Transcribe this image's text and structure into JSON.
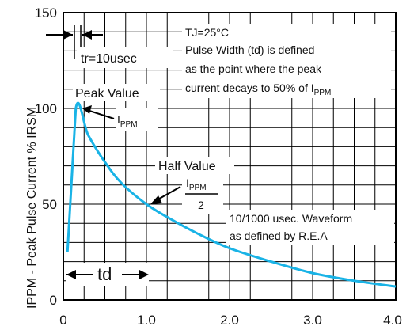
{
  "chart_data": {
    "type": "line",
    "title": "",
    "xlabel": "",
    "ylabel": "IPPM - Peak Pulse Current % IRSM",
    "xlim": [
      0,
      4.0
    ],
    "ylim": [
      0,
      150
    ],
    "x_ticks": [
      "0",
      "1.0",
      "2.0",
      "3.0",
      "4.0"
    ],
    "y_ticks": [
      "0",
      "50",
      "100",
      "150"
    ],
    "grid": true,
    "series": [
      {
        "color": "#19b3e6",
        "x": [
          0.05,
          0.15,
          0.3,
          0.5,
          0.7,
          1.0,
          1.3,
          1.6,
          2.0,
          2.5,
          3.0,
          3.5,
          4.0
        ],
        "y": [
          25,
          100,
          86,
          72,
          61,
          50,
          42,
          35,
          27,
          20,
          14,
          10,
          7
        ]
      }
    ],
    "annotations": {
      "tr": "tr=10usec",
      "tj": "TJ=25°C",
      "pw_line1": "Pulse Width (td) is defined",
      "pw_line2": "as the point where the peak",
      "pw_line3": "current decays to 50% of I",
      "pw_line3_sub": "PPM",
      "peak_value": "Peak Value",
      "ippm_main": "I",
      "ippm_sub": "PPM",
      "half_value": "Half Value",
      "half_num": "I",
      "half_num_sub": "PPM",
      "half_den": "2",
      "waveform_line1": "10/1000 usec. Waveform",
      "waveform_line2": "as defined by R.E.A",
      "td": "td"
    }
  }
}
